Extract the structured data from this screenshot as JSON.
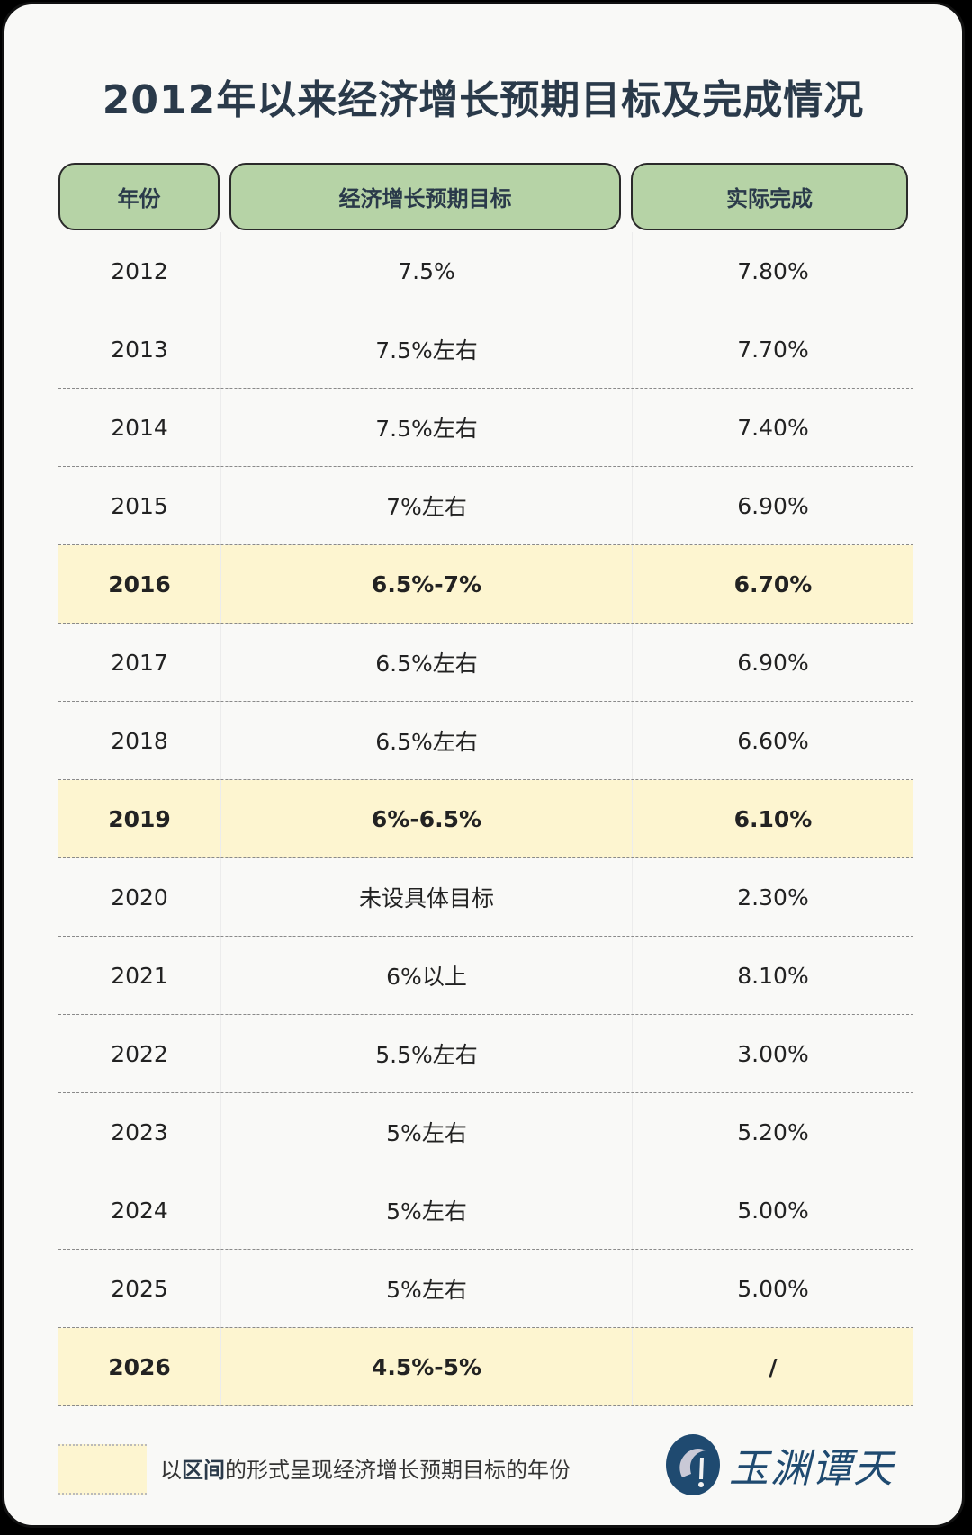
{
  "title": "2012年以来经济增长预期目标及完成情况",
  "headers": [
    "年份",
    "经济增长预期目标",
    "实际完成"
  ],
  "rows": [
    {
      "year": "2012",
      "target": "7.5%",
      "actual": "7.80%",
      "highlight": false
    },
    {
      "year": "2013",
      "target": "7.5%左右",
      "actual": "7.70%",
      "highlight": false
    },
    {
      "year": "2014",
      "target": "7.5%左右",
      "actual": "7.40%",
      "highlight": false
    },
    {
      "year": "2015",
      "target": "7%左右",
      "actual": "6.90%",
      "highlight": false
    },
    {
      "year": "2016",
      "target": "6.5%-7%",
      "actual": "6.70%",
      "highlight": true
    },
    {
      "year": "2017",
      "target": "6.5%左右",
      "actual": "6.90%",
      "highlight": false
    },
    {
      "year": "2018",
      "target": "6.5%左右",
      "actual": "6.60%",
      "highlight": false
    },
    {
      "year": "2019",
      "target": "6%-6.5%",
      "actual": "6.10%",
      "highlight": true
    },
    {
      "year": "2020",
      "target": "未设具体目标",
      "actual": "2.30%",
      "highlight": false
    },
    {
      "year": "2021",
      "target": "6%以上",
      "actual": "8.10%",
      "highlight": false
    },
    {
      "year": "2022",
      "target": "5.5%左右",
      "actual": "3.00%",
      "highlight": false
    },
    {
      "year": "2023",
      "target": "5%左右",
      "actual": "5.20%",
      "highlight": false
    },
    {
      "year": "2024",
      "target": "5%左右",
      "actual": "5.00%",
      "highlight": false
    },
    {
      "year": "2025",
      "target": "5%左右",
      "actual": "5.00%",
      "highlight": false
    },
    {
      "year": "2026",
      "target": "4.5%-5%",
      "actual": "/",
      "highlight": true
    }
  ],
  "legend": {
    "prefix": "以",
    "bold": "区间",
    "suffix": "的形式呈现经济增长预期目标的年份"
  },
  "logo": {
    "text": "玉渊谭天"
  },
  "colors": {
    "header_bg": "#b6d3a6",
    "highlight_bg": "#fdf5d0",
    "title": "#2a3a4a",
    "logo": "#1f4a70"
  }
}
